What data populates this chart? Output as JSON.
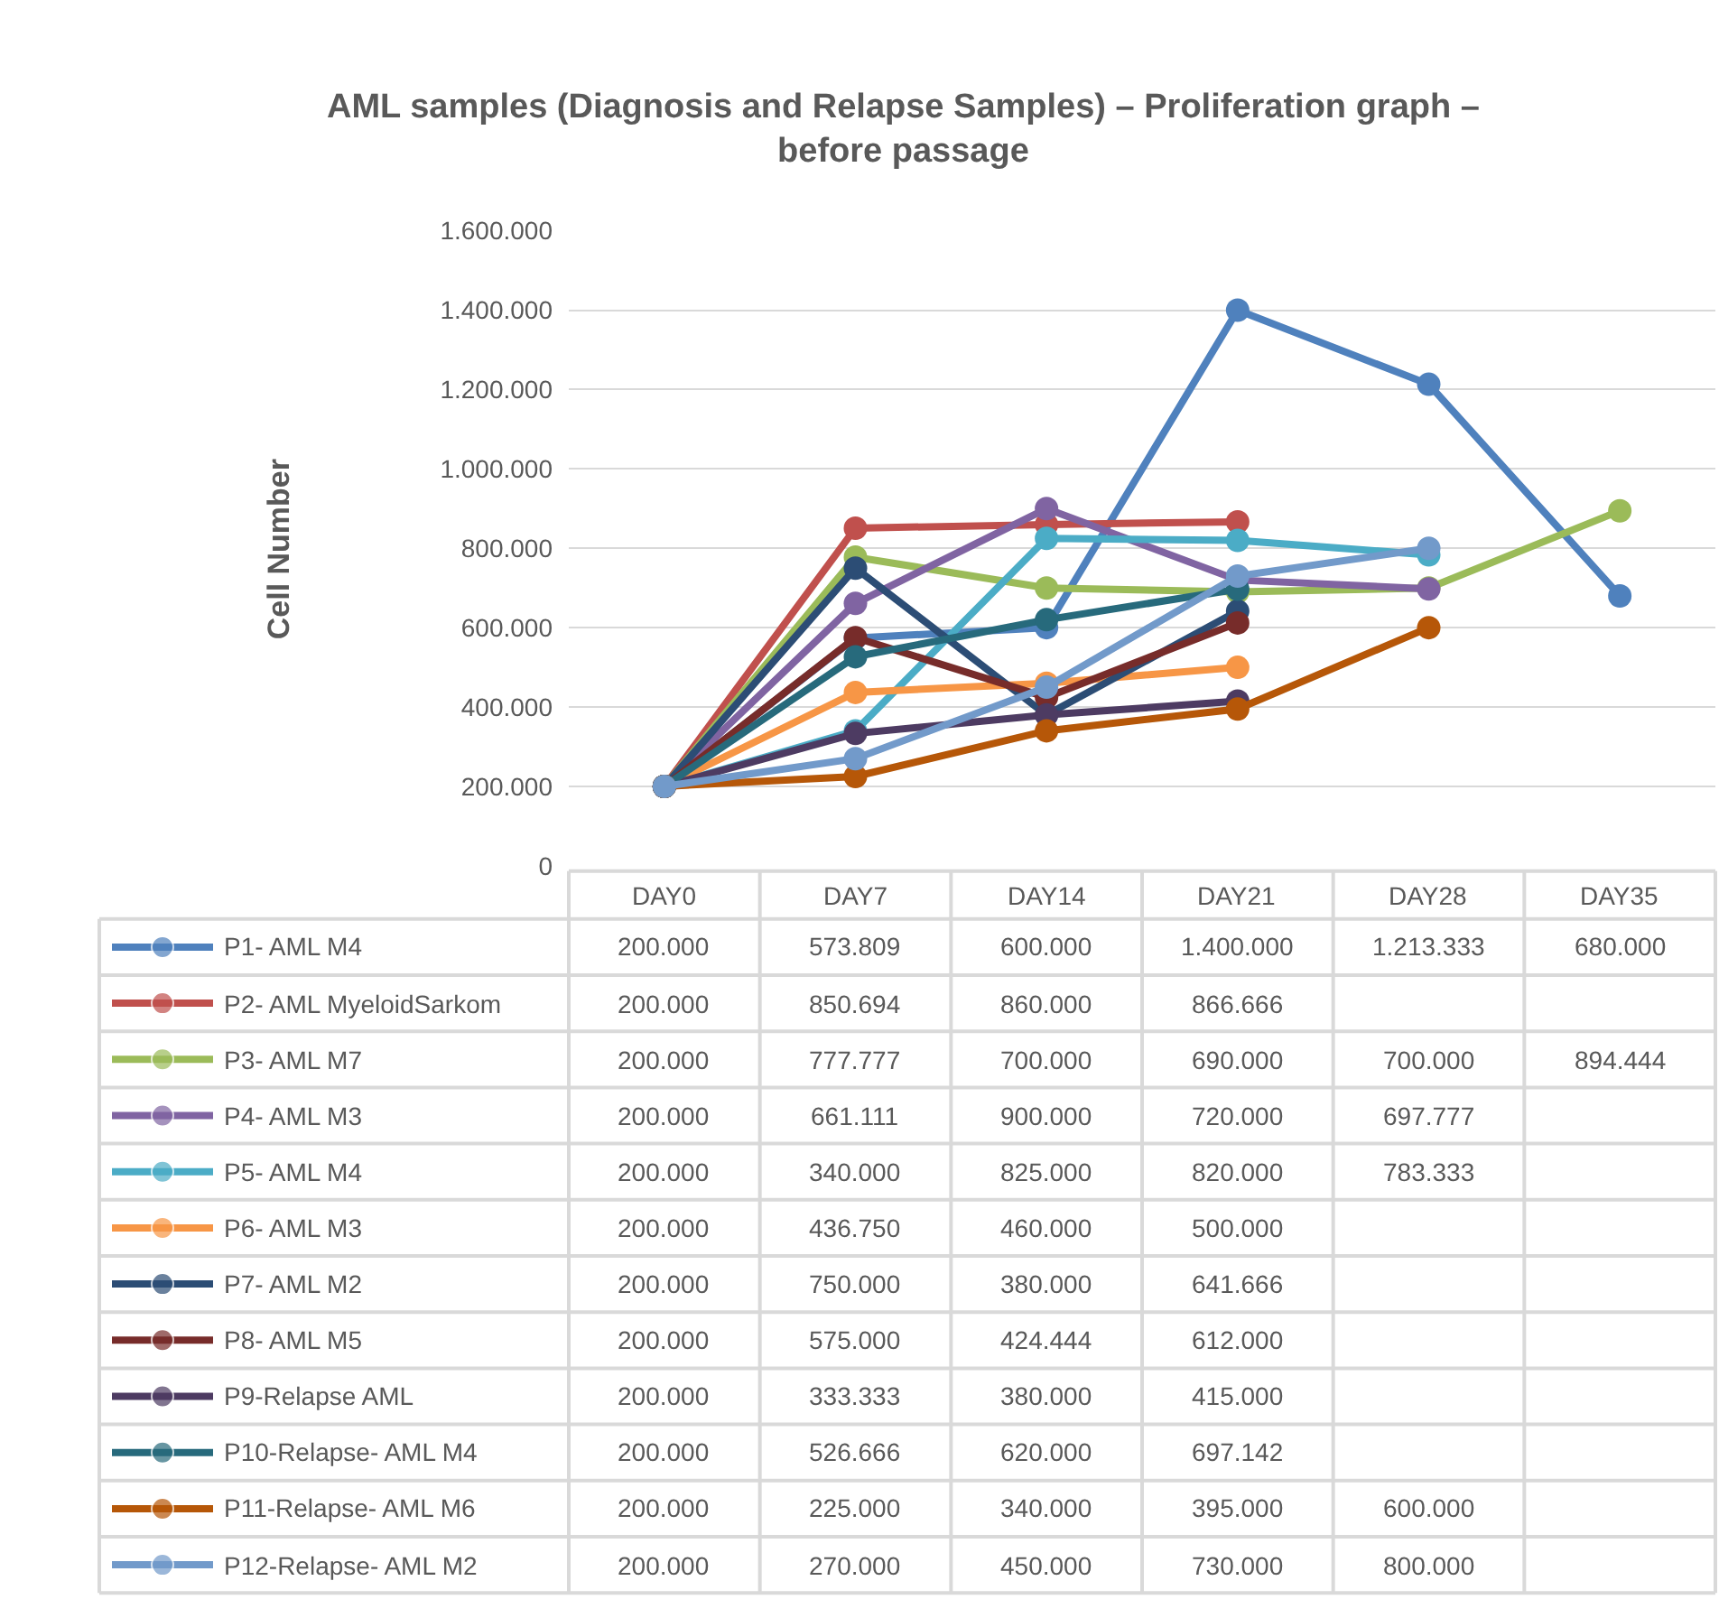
{
  "chart_data": {
    "type": "line",
    "title": "AML samples (Diagnosis and Relapse Samples) – Proliferation graph – before passage",
    "ylabel": "Cell Number",
    "categories": [
      "DAY0",
      "DAY7",
      "DAY14",
      "DAY21",
      "DAY28",
      "DAY35"
    ],
    "ylim": [
      0,
      1600000
    ],
    "yticks": [
      {
        "value": 0,
        "label": "0"
      },
      {
        "value": 200000,
        "label": "200.000"
      },
      {
        "value": 400000,
        "label": "400.000"
      },
      {
        "value": 600000,
        "label": "600.000"
      },
      {
        "value": 800000,
        "label": "800.000"
      },
      {
        "value": 1000000,
        "label": "1.000.000"
      },
      {
        "value": 1200000,
        "label": "1.200.000"
      },
      {
        "value": 1400000,
        "label": "1.400.000"
      },
      {
        "value": 1600000,
        "label": "1.600.000"
      }
    ],
    "grid": "y",
    "legend": "bottom",
    "marker": "circle",
    "line_style": "solid",
    "tick_labels": "y",
    "series": [
      {
        "name": "P1- AML M4",
        "color": "#4f81bd",
        "values": [
          200000,
          573809,
          600000,
          1400000,
          1213333,
          680000
        ],
        "value_labels": [
          "200.000",
          "573.809",
          "600.000",
          "1.400.000",
          "1.213.333",
          "680.000"
        ]
      },
      {
        "name": "P2- AML MyeloidSarkom",
        "color": "#c0504d",
        "values": [
          200000,
          850694,
          860000,
          866666,
          null,
          null
        ],
        "value_labels": [
          "200.000",
          "850.694",
          "860.000",
          "866.666",
          null,
          null
        ]
      },
      {
        "name": "P3- AML M7",
        "color": "#9bbb59",
        "values": [
          200000,
          777777,
          700000,
          690000,
          700000,
          894444
        ],
        "value_labels": [
          "200.000",
          "777.777",
          "700.000",
          "690.000",
          "700.000",
          "894.444"
        ]
      },
      {
        "name": "P4- AML M3",
        "color": "#8064a2",
        "values": [
          200000,
          661111,
          900000,
          720000,
          697777,
          null
        ],
        "value_labels": [
          "200.000",
          "661.111",
          "900.000",
          "720.000",
          "697.777",
          null
        ]
      },
      {
        "name": "P5- AML M4",
        "color": "#4bacc6",
        "values": [
          200000,
          340000,
          825000,
          820000,
          783333,
          null
        ],
        "value_labels": [
          "200.000",
          "340.000",
          "825.000",
          "820.000",
          "783.333",
          null
        ]
      },
      {
        "name": "P6- AML M3",
        "color": "#f79646",
        "values": [
          200000,
          436750,
          460000,
          500000,
          null,
          null
        ],
        "value_labels": [
          "200.000",
          "436.750",
          "460.000",
          "500.000",
          null,
          null
        ]
      },
      {
        "name": "P7- AML M2",
        "color": "#2c4d75",
        "values": [
          200000,
          750000,
          380000,
          641666,
          null,
          null
        ],
        "value_labels": [
          "200.000",
          "750.000",
          "380.000",
          "641.666",
          null,
          null
        ]
      },
      {
        "name": "P8- AML M5",
        "color": "#772c2a",
        "values": [
          200000,
          575000,
          424444,
          612000,
          null,
          null
        ],
        "value_labels": [
          "200.000",
          "575.000",
          "424.444",
          "612.000",
          null,
          null
        ]
      },
      {
        "name": "P9-Relapse AML",
        "color": "#4d3b62",
        "values": [
          200000,
          333333,
          380000,
          415000,
          null,
          null
        ],
        "value_labels": [
          "200.000",
          "333.333",
          "380.000",
          "415.000",
          null,
          null
        ]
      },
      {
        "name": "P10-Relapse- AML M4",
        "color": "#276a7c",
        "values": [
          200000,
          526666,
          620000,
          697142,
          null,
          null
        ],
        "value_labels": [
          "200.000",
          "526.666",
          "620.000",
          "697.142",
          null,
          null
        ]
      },
      {
        "name": "P11-Relapse- AML M6",
        "color": "#b65708",
        "values": [
          200000,
          225000,
          340000,
          395000,
          600000,
          null
        ],
        "value_labels": [
          "200.000",
          "225.000",
          "340.000",
          "395.000",
          "600.000",
          null
        ]
      },
      {
        "name": "P12-Relapse- AML M2",
        "color": "#729aca",
        "values": [
          200000,
          270000,
          450000,
          730000,
          800000,
          null
        ],
        "value_labels": [
          "200.000",
          "270.000",
          "450.000",
          "730.000",
          "800.000",
          null
        ]
      }
    ]
  }
}
